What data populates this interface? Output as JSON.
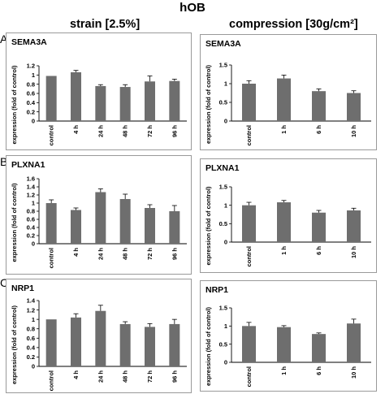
{
  "figure": {
    "title": "hOB",
    "columns": [
      "strain [2.5%]",
      "compression [30g/cm²]"
    ],
    "rows": [
      "A",
      "B",
      "C"
    ],
    "bar_color": "#6e6e6e"
  },
  "chart_data": [
    {
      "type": "bar",
      "title": "SEMA3A",
      "ylabel": "expression (fold of control)",
      "categories": [
        "control",
        "4 h",
        "24 h",
        "48 h",
        "72 h",
        "96 h"
      ],
      "values": [
        0.98,
        1.06,
        0.76,
        0.74,
        0.86,
        0.87
      ],
      "errors": [
        0.0,
        0.04,
        0.03,
        0.05,
        0.12,
        0.04
      ],
      "ylim": [
        0,
        1.2
      ],
      "yticks": [
        "0",
        "0.2",
        "0.4",
        "0.6",
        "0.8",
        "1",
        "1.2"
      ]
    },
    {
      "type": "bar",
      "title": "SEMA3A",
      "ylabel": "expression (fold of control)",
      "categories": [
        "control",
        "1 h",
        "6 h",
        "10 h"
      ],
      "values": [
        1.0,
        1.14,
        0.8,
        0.75
      ],
      "errors": [
        0.08,
        0.09,
        0.06,
        0.06
      ],
      "ylim": [
        0,
        1.5
      ],
      "yticks": [
        "0",
        "0.5",
        "1",
        "1.5"
      ]
    },
    {
      "type": "bar",
      "title": "PLXNA1",
      "ylabel": "expression (fold of control)",
      "categories": [
        "control",
        "4 h",
        "24 h",
        "48 h",
        "72 h",
        "96 h"
      ],
      "values": [
        1.0,
        0.83,
        1.27,
        1.1,
        0.88,
        0.8
      ],
      "errors": [
        0.08,
        0.05,
        0.08,
        0.12,
        0.08,
        0.14
      ],
      "ylim": [
        0,
        1.6
      ],
      "yticks": [
        "0",
        "0.2",
        "0.4",
        "0.6",
        "0.8",
        "1",
        "1.2",
        "1.4",
        "1.6"
      ]
    },
    {
      "type": "bar",
      "title": "PLXNA1",
      "ylabel": "expression (fold of control)",
      "categories": [
        "control",
        "1 h",
        "6 h",
        "10 h"
      ],
      "values": [
        1.0,
        1.08,
        0.8,
        0.86
      ],
      "errors": [
        0.08,
        0.05,
        0.06,
        0.06
      ],
      "ylim": [
        0,
        1.5
      ],
      "yticks": [
        "0",
        "0.5",
        "1",
        "1.5"
      ]
    },
    {
      "type": "bar",
      "title": "NRP1",
      "ylabel": "expression (fold of control)",
      "categories": [
        "control",
        "4 h",
        "24 h",
        "48 h",
        "72 h",
        "96 h"
      ],
      "values": [
        1.0,
        1.04,
        1.18,
        0.9,
        0.84,
        0.9
      ],
      "errors": [
        0.0,
        0.08,
        0.12,
        0.05,
        0.07,
        0.1
      ],
      "ylim": [
        0,
        1.4
      ],
      "yticks": [
        "0",
        "0.2",
        "0.4",
        "0.6",
        "0.8",
        "1",
        "1.2",
        "1.4"
      ]
    },
    {
      "type": "bar",
      "title": "NRP1",
      "ylabel": "expression (fold of control)",
      "categories": [
        "control",
        "1 h",
        "6 h",
        "10 h"
      ],
      "values": [
        1.0,
        0.97,
        0.78,
        1.07
      ],
      "errors": [
        0.1,
        0.04,
        0.03,
        0.12
      ],
      "ylim": [
        0,
        1.5
      ],
      "yticks": [
        "0",
        "0.5",
        "1",
        "1.5"
      ]
    }
  ]
}
